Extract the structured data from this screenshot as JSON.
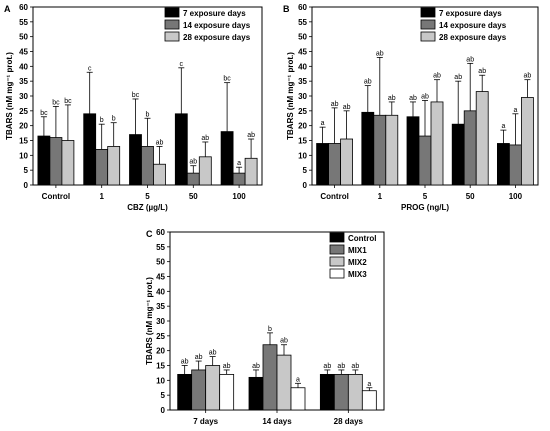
{
  "chart_data": [
    {
      "panel": "A",
      "type": "bar",
      "ylabel": "TBARS (nM mg⁻¹ prot.)",
      "xlabel": "CBZ (µg/L)",
      "ylim": [
        0,
        60
      ],
      "yticks": [
        0,
        5,
        10,
        15,
        20,
        25,
        30,
        35,
        40,
        45,
        50,
        55,
        60
      ],
      "categories": [
        "Control",
        "1",
        "5",
        "50",
        "100"
      ],
      "legend_position": "top-right",
      "series": [
        {
          "name": "7 exposure days",
          "color": "#000000",
          "values": [
            16.5,
            24,
            17,
            24,
            18
          ],
          "errors": [
            6.5,
            14,
            12,
            15.5,
            16.5
          ],
          "labels": [
            "bc",
            "c",
            "bc",
            "c",
            "bc"
          ]
        },
        {
          "name": "14 exposure days",
          "color": "#777777",
          "values": [
            16,
            12,
            13,
            4,
            4
          ],
          "errors": [
            10.5,
            8.5,
            9.5,
            2.5,
            2
          ],
          "labels": [
            "bc",
            "b",
            "b",
            "ab",
            "a"
          ]
        },
        {
          "name": "28 exposure days",
          "color": "#c8c8c8",
          "values": [
            15,
            13,
            7,
            9.5,
            9
          ],
          "errors": [
            12,
            8,
            6,
            5,
            6.5
          ],
          "labels": [
            "bc",
            "b",
            "ab",
            "ab",
            "ab"
          ]
        }
      ]
    },
    {
      "panel": "B",
      "type": "bar",
      "ylabel": "TBARS (nM mg⁻¹ prot.)",
      "xlabel": "PROG (ng/L)",
      "ylim": [
        0,
        60
      ],
      "yticks": [
        0,
        5,
        10,
        15,
        20,
        25,
        30,
        35,
        40,
        45,
        50,
        55,
        60
      ],
      "categories": [
        "Control",
        "1",
        "5",
        "50",
        "100"
      ],
      "legend_position": "top-right",
      "series": [
        {
          "name": "7 exposure days",
          "color": "#000000",
          "values": [
            14,
            24.5,
            23,
            20.5,
            14
          ],
          "errors": [
            5.5,
            9,
            5,
            14.5,
            4.5
          ],
          "labels": [
            "a",
            "ab",
            "ab",
            "ab",
            "a"
          ]
        },
        {
          "name": "14 exposure days",
          "color": "#777777",
          "values": [
            14,
            23.5,
            16.5,
            25,
            13.5
          ],
          "errors": [
            12,
            19.5,
            12,
            16,
            10.5
          ],
          "labels": [
            "ab",
            "ab",
            "ab",
            "ab",
            "a"
          ]
        },
        {
          "name": "28 exposure days",
          "color": "#c8c8c8",
          "values": [
            15.5,
            23.5,
            28,
            31.5,
            29.5
          ],
          "errors": [
            9.5,
            4.5,
            7.5,
            5.5,
            6
          ],
          "labels": [
            "ab",
            "ab",
            "ab",
            "ab",
            "ab"
          ]
        }
      ]
    },
    {
      "panel": "C",
      "type": "bar",
      "ylabel": "TBARS (nM mg⁻¹ prot.)",
      "xlabel": "",
      "ylim": [
        0,
        60
      ],
      "yticks": [
        0,
        5,
        10,
        15,
        20,
        25,
        30,
        35,
        40,
        45,
        50,
        55,
        60
      ],
      "categories": [
        "7 days",
        "14 days",
        "28 days"
      ],
      "legend_position": "top-right",
      "series": [
        {
          "name": "Control",
          "color": "#000000",
          "values": [
            12,
            11,
            12
          ],
          "errors": [
            3,
            2.5,
            1.5
          ],
          "labels": [
            "ab",
            "ab",
            "ab"
          ]
        },
        {
          "name": "MIX1",
          "color": "#777777",
          "values": [
            13.5,
            22,
            12
          ],
          "errors": [
            3,
            4,
            1.5
          ],
          "labels": [
            "ab",
            "b",
            "ab"
          ]
        },
        {
          "name": "MIX2",
          "color": "#c8c8c8",
          "values": [
            15,
            18.5,
            12
          ],
          "errors": [
            3,
            3.5,
            1.5
          ],
          "labels": [
            "ab",
            "ab",
            "ab"
          ]
        },
        {
          "name": "MIX3",
          "color": "#ffffff",
          "values": [
            12,
            7.5,
            6.5
          ],
          "errors": [
            1.5,
            1.5,
            1
          ],
          "labels": [
            "ab",
            "a",
            "a"
          ]
        }
      ]
    }
  ]
}
